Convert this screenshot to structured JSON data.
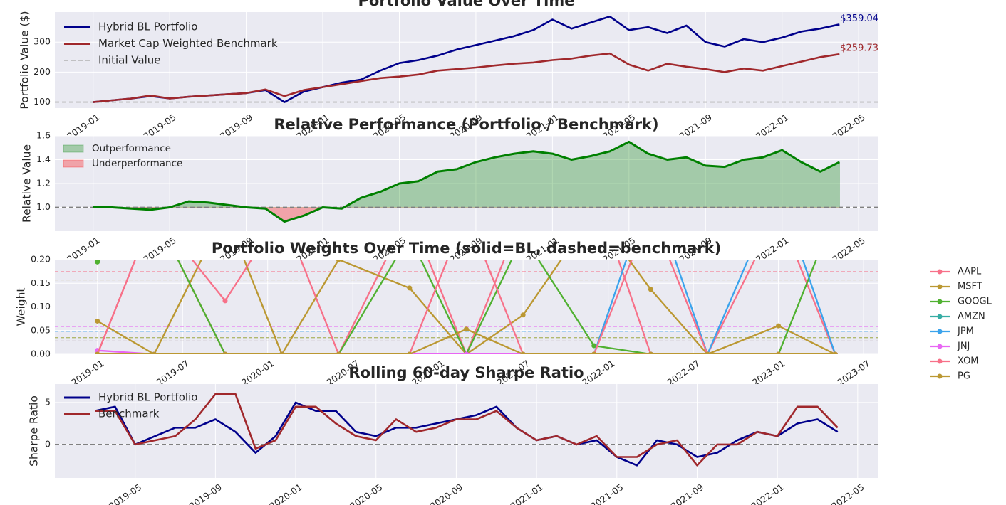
{
  "chart_data": [
    {
      "type": "line",
      "title": "Portfolio Value Over Time",
      "ylabel": "Portfolio Value ($)",
      "x": [
        "2019-01",
        "2019-02",
        "2019-03",
        "2019-04",
        "2019-05",
        "2019-06",
        "2019-07",
        "2019-08",
        "2019-09",
        "2019-10",
        "2019-11",
        "2019-12",
        "2020-01",
        "2020-02",
        "2020-03",
        "2020-04",
        "2020-05",
        "2020-06",
        "2020-07",
        "2020-08",
        "2020-09",
        "2020-10",
        "2020-11",
        "2020-12",
        "2021-01",
        "2021-02",
        "2021-03",
        "2021-04",
        "2021-05",
        "2021-06",
        "2021-07",
        "2021-08",
        "2021-09",
        "2021-10",
        "2021-11",
        "2021-12",
        "2022-01",
        "2022-02",
        "2022-03",
        "2022-04"
      ],
      "series": [
        {
          "name": "Hybrid BL Portfolio",
          "color": "#00008b",
          "end_label": "$359.04",
          "values": [
            100,
            106,
            112,
            120,
            112,
            118,
            122,
            126,
            130,
            140,
            100,
            135,
            150,
            165,
            175,
            205,
            230,
            240,
            255,
            275,
            290,
            305,
            320,
            340,
            375,
            345,
            365,
            385,
            340,
            350,
            330,
            355,
            300,
            285,
            310,
            300,
            315,
            335,
            345,
            359.04
          ]
        },
        {
          "name": "Market Cap Weighted Benchmark",
          "color": "#a0282c",
          "end_label": "$259.73",
          "values": [
            100,
            106,
            112,
            122,
            112,
            118,
            122,
            126,
            130,
            142,
            120,
            140,
            150,
            160,
            170,
            180,
            185,
            192,
            205,
            210,
            215,
            222,
            228,
            232,
            240,
            245,
            255,
            262,
            225,
            205,
            228,
            218,
            210,
            200,
            212,
            205,
            220,
            235,
            250,
            259.73
          ]
        }
      ],
      "reference_line": {
        "name": "Initial Value",
        "value": 100,
        "color": "#bbbbbb"
      },
      "xlim": [
        "2018-11",
        "2022-06"
      ],
      "xticks": [
        "2019-01",
        "2019-05",
        "2019-09",
        "2020-01",
        "2020-05",
        "2020-09",
        "2021-01",
        "2021-05",
        "2021-09",
        "2022-01",
        "2022-05"
      ],
      "ylim": [
        80,
        400
      ],
      "yticks": [
        100,
        200,
        300
      ],
      "grid": true,
      "legend": "upper left"
    },
    {
      "type": "area",
      "title": "Relative Performance (Portfolio / Benchmark)",
      "ylabel": "Relative Value",
      "x": [
        "2019-01",
        "2019-02",
        "2019-03",
        "2019-04",
        "2019-05",
        "2019-06",
        "2019-07",
        "2019-08",
        "2019-09",
        "2019-10",
        "2019-11",
        "2019-12",
        "2020-01",
        "2020-02",
        "2020-03",
        "2020-04",
        "2020-05",
        "2020-06",
        "2020-07",
        "2020-08",
        "2020-09",
        "2020-10",
        "2020-11",
        "2020-12",
        "2021-01",
        "2021-02",
        "2021-03",
        "2021-04",
        "2021-05",
        "2021-06",
        "2021-07",
        "2021-08",
        "2021-09",
        "2021-10",
        "2021-11",
        "2021-12",
        "2022-01",
        "2022-02",
        "2022-03",
        "2022-04"
      ],
      "values": [
        1.0,
        1.0,
        0.99,
        0.98,
        1.0,
        1.05,
        1.04,
        1.02,
        1.0,
        0.99,
        0.88,
        0.93,
        1.0,
        0.99,
        1.08,
        1.13,
        1.2,
        1.22,
        1.3,
        1.32,
        1.38,
        1.42,
        1.45,
        1.47,
        1.45,
        1.4,
        1.43,
        1.47,
        1.55,
        1.45,
        1.4,
        1.42,
        1.35,
        1.34,
        1.4,
        1.42,
        1.48,
        1.38,
        1.3,
        1.38
      ],
      "color": "green",
      "baseline": 1,
      "fills": [
        {
          "name": "Outperformance",
          "color": "green"
        },
        {
          "name": "Underperformance",
          "color": "red"
        }
      ],
      "xlim": [
        "2018-11",
        "2022-06"
      ],
      "xticks": [
        "2019-01",
        "2019-05",
        "2019-09",
        "2020-01",
        "2020-05",
        "2020-09",
        "2021-01",
        "2021-05",
        "2021-09",
        "2022-01",
        "2022-05"
      ],
      "ylim": [
        0.8,
        1.6
      ],
      "yticks": [
        {
          "value": 1,
          "label": "1.0"
        },
        1.2,
        1.4,
        1.6
      ],
      "grid": true,
      "legend": "upper left"
    },
    {
      "type": "line",
      "title": "Portfolio Weights Over Time (solid=BL, dashed=benchmark)",
      "ylabel": "Weight",
      "markers": true,
      "x": [
        "2019-01",
        "2019-05",
        "2019-10",
        "2020-02",
        "2020-06",
        "2020-11",
        "2021-03",
        "2021-07",
        "2021-12",
        "2022-04",
        "2022-08",
        "2023-01",
        "2023-05"
      ],
      "series": [
        {
          "name": "AAPL",
          "color": "#f77189",
          "benchmark": 0.175,
          "values": [
            0.0,
            0.3,
            0.0,
            0.0,
            0.0,
            0.3,
            0.0,
            0.3,
            0.35,
            0.0,
            0.0,
            0.3,
            0.0
          ]
        },
        {
          "name": "MSFT",
          "color": "#bb9832",
          "benchmark": 0.157,
          "values": [
            0.07,
            0.0,
            0.3,
            0.0,
            0.2,
            0.14,
            0.0,
            0.083,
            0.3,
            0.137,
            0.0,
            0.06,
            0.0
          ]
        },
        {
          "name": "GOOGL",
          "color": "#50b131",
          "benchmark": 0.035,
          "values": [
            0.195,
            0.3,
            0.0,
            0.0,
            0.0,
            0.25,
            0.0,
            0.25,
            0.018,
            0.0,
            0.0,
            0.0,
            0.3
          ]
        },
        {
          "name": "AMZN",
          "color": "#36ada4",
          "benchmark": 0.028,
          "values": [
            0,
            0,
            0,
            0,
            0,
            0,
            0,
            0,
            0,
            0,
            0,
            0,
            0
          ]
        },
        {
          "name": "JPM",
          "color": "#3ba3ec",
          "benchmark": 0.048,
          "values": [
            0,
            0,
            0,
            0,
            0,
            0,
            0,
            0,
            0.0,
            0.35,
            0.0,
            0.35,
            0.0
          ]
        },
        {
          "name": "JNJ",
          "color": "#e866f4",
          "benchmark": 0.058,
          "values": [
            0.008,
            0,
            0,
            0,
            0,
            0,
            0,
            0,
            0,
            0,
            0,
            0,
            0
          ]
        },
        {
          "name": "XOM",
          "color": "#f77189",
          "benchmark": 0.028,
          "values": [
            0.0,
            0.3,
            0.113,
            0.3,
            0.0,
            0.0,
            0.3,
            0.0,
            0.0,
            0.3,
            0.0,
            0.0,
            0.0
          ]
        },
        {
          "name": "PG",
          "color": "#bb9832",
          "benchmark": 0.035,
          "values": [
            0.0,
            0.0,
            0.0,
            0.0,
            0.0,
            0.0,
            0.053,
            0.0,
            0.0,
            0.0,
            0.0,
            0.0,
            0.0
          ]
        }
      ],
      "xlim": [
        "2018-10",
        "2023-08"
      ],
      "xticks": [
        "2019-01",
        "2019-07",
        "2020-01",
        "2020-07",
        "2021-01",
        "2021-07",
        "2022-01",
        "2022-07",
        "2023-01",
        "2023-07"
      ],
      "ylim": [
        0,
        0.2
      ],
      "yticks": [
        {
          "value": 0,
          "label": "0.00"
        },
        {
          "value": 0.05,
          "label": "0.05"
        },
        {
          "value": 0.1,
          "label": "0.10"
        },
        {
          "value": 0.15,
          "label": "0.15"
        },
        {
          "value": 0.2,
          "label": "0.20"
        }
      ],
      "grid": true,
      "legend": "outside right"
    },
    {
      "type": "line",
      "title": "Rolling 60-day Sharpe Ratio",
      "ylabel": "Sharpe Ratio",
      "x": [
        "2019-03",
        "2019-04",
        "2019-05",
        "2019-06",
        "2019-07",
        "2019-08",
        "2019-09",
        "2019-10",
        "2019-11",
        "2019-12",
        "2020-01",
        "2020-02",
        "2020-03",
        "2020-04",
        "2020-05",
        "2020-06",
        "2020-07",
        "2020-08",
        "2020-09",
        "2020-10",
        "2020-11",
        "2020-12",
        "2021-01",
        "2021-02",
        "2021-03",
        "2021-04",
        "2021-05",
        "2021-06",
        "2021-07",
        "2021-08",
        "2021-09",
        "2021-10",
        "2021-11",
        "2021-12",
        "2022-01",
        "2022-02",
        "2022-03",
        "2022-04"
      ],
      "series": [
        {
          "name": "Hybrid BL Portfolio",
          "color": "#00008b",
          "values": [
            4,
            4.5,
            0,
            1,
            2,
            2,
            3,
            1.5,
            -1,
            1,
            5,
            4,
            4,
            1.5,
            1,
            2,
            2,
            2.5,
            3,
            3.5,
            4.5,
            2,
            0.5,
            1,
            0,
            0.5,
            -1.5,
            -2.5,
            0.5,
            0,
            -1.5,
            -1,
            0.5,
            1.5,
            1,
            2.5,
            3,
            1.5
          ]
        },
        {
          "name": "Benchmark",
          "color": "#a0282c",
          "values": [
            4,
            4,
            0,
            0.5,
            1,
            3,
            6,
            6,
            -0.5,
            0.5,
            4.5,
            4.5,
            2.5,
            1,
            0.5,
            3,
            1.5,
            2,
            3,
            3,
            4,
            2,
            0.5,
            1,
            0,
            1,
            -1.5,
            -1.5,
            0,
            0.5,
            -2.5,
            0,
            0,
            1.5,
            1,
            4.5,
            4.5,
            2
          ]
        }
      ],
      "reference_line": {
        "value": 0,
        "color": "#808080"
      },
      "xlim": [
        "2019-01",
        "2022-06"
      ],
      "xticks": [
        "2019-05",
        "2019-09",
        "2020-01",
        "2020-05",
        "2020-09",
        "2021-01",
        "2021-05",
        "2021-09",
        "2022-01",
        "2022-05"
      ],
      "ylim": [
        -4,
        7.2
      ],
      "yticks": [
        0,
        5
      ],
      "grid": true,
      "legend": "upper left"
    }
  ]
}
